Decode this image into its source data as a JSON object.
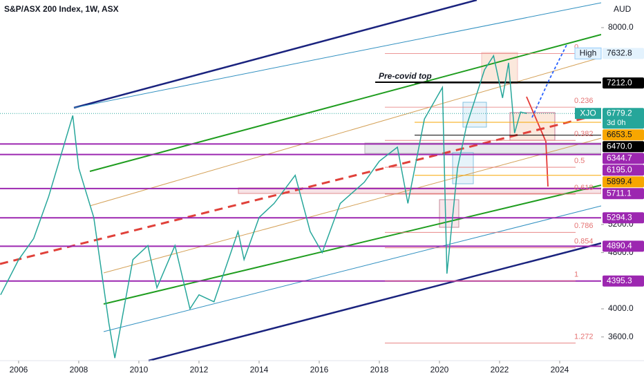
{
  "chart_data": {
    "type": "line",
    "title": "S&P/ASX 200 Index, 1W, ASX",
    "currency": "AUD",
    "annotation": "Pre-covid top",
    "xlim": [
      2005.38,
      2025.38
    ],
    "xticks": [
      2006,
      2008,
      2010,
      2012,
      2014,
      2016,
      2018,
      2020,
      2022,
      2024
    ],
    "ylim": [
      3263,
      8393
    ],
    "yticks": [
      {
        "value": 8000,
        "label": "8000.0"
      },
      {
        "value": 5200,
        "label": "5200.0"
      },
      {
        "value": 4800,
        "label": "4800.0"
      },
      {
        "value": 4000,
        "label": "4000.0"
      },
      {
        "value": 3600,
        "label": "3600.0"
      }
    ],
    "series": [
      {
        "name": "XJO",
        "color": "#26a69a",
        "x": [
          2005.4,
          2006.0,
          2006.5,
          2007.0,
          2007.8,
          2008.0,
          2008.5,
          2009.0,
          2009.2,
          2009.8,
          2010.3,
          2010.6,
          2011.2,
          2011.7,
          2012.0,
          2012.5,
          2013.3,
          2013.5,
          2014.0,
          2014.5,
          2015.2,
          2015.7,
          2016.1,
          2016.7,
          2017.5,
          2018.0,
          2018.6,
          2018.95,
          2019.5,
          2020.1,
          2020.25,
          2020.6,
          2020.9,
          2021.5,
          2021.8,
          2022.1,
          2022.3,
          2022.5,
          2022.7,
          2022.9
        ],
        "values": [
          4200,
          4700,
          5000,
          5600,
          6750,
          6000,
          5300,
          3800,
          3300,
          4700,
          4900,
          4300,
          4900,
          4000,
          4200,
          4100,
          5100,
          4700,
          5300,
          5500,
          5900,
          5100,
          4800,
          5500,
          5800,
          6100,
          6300,
          5500,
          6700,
          7150,
          4500,
          6000,
          6600,
          7400,
          7600,
          7000,
          7500,
          6500,
          6800,
          6779.2
        ]
      }
    ],
    "last_tag": {
      "name": "XJO",
      "value": 6779.2,
      "countdown": "3d 0h"
    },
    "high": {
      "name": "High",
      "value": 7632.8
    },
    "levels": [
      {
        "value": 7212,
        "label": "7212.0",
        "color": "#000000"
      },
      {
        "value": 6653.5,
        "label": "6653.5",
        "color": "#f7a600"
      },
      {
        "value": 6470,
        "label": "6470.0",
        "color": "#000000"
      },
      {
        "value": 6344.7,
        "label": "6344.7",
        "color": "#9c27b0"
      },
      {
        "value": 6195,
        "label": "6195.0",
        "color": "#9c27b0"
      },
      {
        "value": 5899.4,
        "label": "5899.4",
        "color": "#f7a600"
      },
      {
        "value": 5711.1,
        "label": "5711.1",
        "color": "#9c27b0"
      },
      {
        "value": 5294.3,
        "label": "5294.3",
        "color": "#9c27b0"
      },
      {
        "value": 4890.4,
        "label": "4890.4",
        "color": "#9c27b0"
      },
      {
        "value": 4395.3,
        "label": "4395.3",
        "color": "#9c27b0"
      }
    ],
    "fib": [
      {
        "ratio": 0,
        "value": 7632.8
      },
      {
        "ratio": 0.236,
        "value": 6868.7
      },
      {
        "ratio": 0.382,
        "value": 6396
      },
      {
        "ratio": 0.5,
        "value": 6014
      },
      {
        "ratio": 0.618,
        "value": 5632
      },
      {
        "ratio": 0.786,
        "value": 5088
      },
      {
        "ratio": 0.854,
        "value": 4868
      },
      {
        "ratio": 1,
        "value": 4395.3
      },
      {
        "ratio": 1.272,
        "value": 3514
      }
    ]
  }
}
